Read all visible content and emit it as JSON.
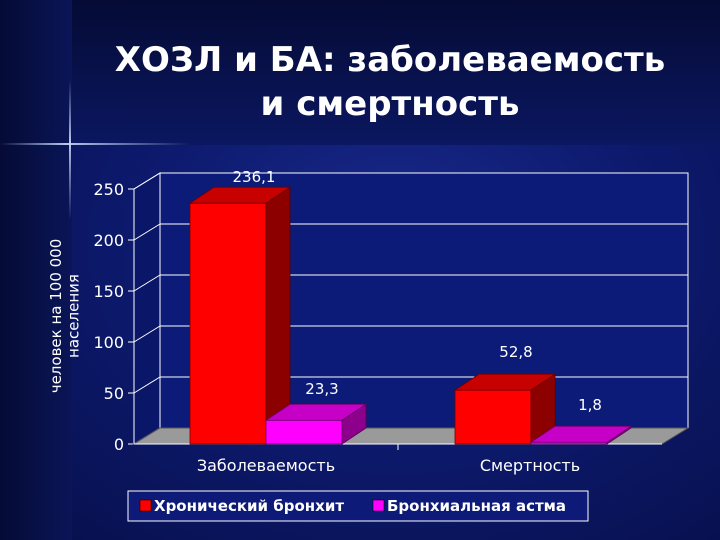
{
  "slide": {
    "title_line1": "ХОЗЛ и БА: заболеваемость",
    "title_line2": "и смертность"
  },
  "colors": {
    "series1": "#ff0000",
    "series2": "#ff00ff",
    "text": "#ffffff",
    "floor": "#9a9a9a"
  },
  "chart_data": {
    "type": "bar",
    "categories": [
      "Заболеваемость",
      "Смертность"
    ],
    "series": [
      {
        "name": "Хронический бронхит",
        "values": [
          236.1,
          52.8
        ],
        "labels": [
          "236,1",
          "52,8"
        ]
      },
      {
        "name": "Бронхиальная астма",
        "values": [
          23.3,
          1.8
        ],
        "labels": [
          "23,3",
          "1,8"
        ]
      }
    ],
    "ylabel": "человек на 100 000 населения",
    "ylim": [
      0,
      250
    ],
    "yticks": [
      0,
      50,
      100,
      150,
      200,
      250
    ],
    "grid": true,
    "legend": "bottom",
    "style": "3d"
  }
}
